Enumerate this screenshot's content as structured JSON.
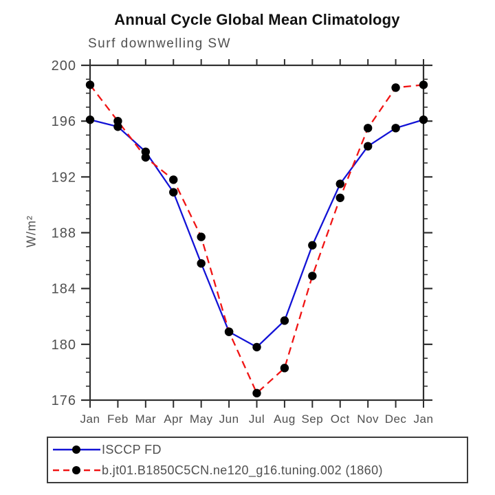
{
  "title": "Annual Cycle Global Mean Climatology",
  "subtitle": "Surf downwelling SW",
  "chart_data": {
    "type": "line",
    "x_categories": [
      "Jan",
      "Feb",
      "Mar",
      "Apr",
      "May",
      "Jun",
      "Jul",
      "Aug",
      "Sep",
      "Oct",
      "Nov",
      "Dec",
      "Jan"
    ],
    "xlabel": "",
    "ylabel": "W/m²",
    "ylim": [
      176,
      200
    ],
    "yticks_major": [
      176,
      180,
      184,
      188,
      192,
      196,
      200
    ],
    "ytick_minor_step": 1,
    "grid": false,
    "legend_position": "boxed legend below plot, bottom-left",
    "series": [
      {
        "name": "ISCCP FD",
        "color": "#1212d6",
        "line_style": "solid",
        "marker": "filled-circle",
        "marker_color": "#000000",
        "values": [
          196.1,
          195.6,
          193.8,
          190.9,
          185.8,
          180.9,
          179.8,
          181.7,
          187.1,
          191.5,
          194.2,
          195.5,
          196.1
        ]
      },
      {
        "name": "b.jt01.B1850C5CN.ne120_g16.tuning.002 (1860)",
        "color": "#f01414",
        "line_style": "dashed",
        "marker": "filled-circle",
        "marker_color": "#000000",
        "values": [
          198.6,
          196.0,
          193.4,
          191.8,
          187.7,
          180.9,
          176.5,
          178.3,
          184.9,
          190.5,
          195.5,
          198.4,
          198.6
        ]
      }
    ]
  },
  "colors": {
    "title": "#111111",
    "labels": "#4f4f4f",
    "axis": "#2e2e2e",
    "marker": "#000000"
  }
}
